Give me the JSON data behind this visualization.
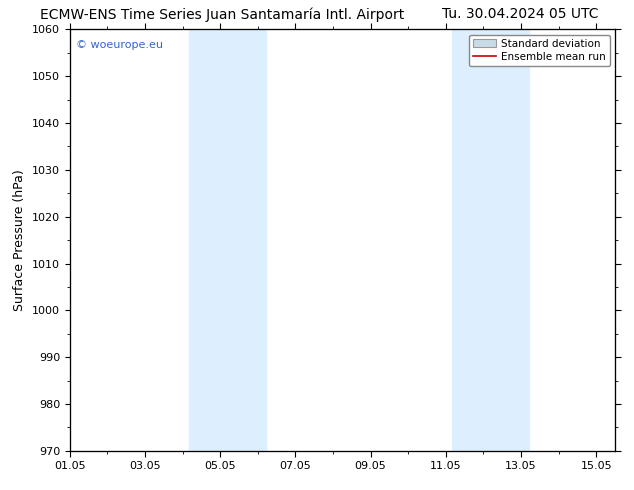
{
  "title_left": "ECMW-ENS Time Series Juan Santamaría Intl. Airport",
  "title_right": "Tu. 30.04.2024 05 UTC",
  "ylabel": "Surface Pressure (hPa)",
  "ylim": [
    970,
    1060
  ],
  "yticks": [
    970,
    980,
    990,
    1000,
    1010,
    1020,
    1030,
    1040,
    1050,
    1060
  ],
  "xtick_labels": [
    "01.05",
    "03.05",
    "05.05",
    "07.05",
    "09.05",
    "11.05",
    "13.05",
    "15.05"
  ],
  "xtick_positions": [
    0,
    2,
    4,
    6,
    8,
    10,
    12,
    14
  ],
  "xlim": [
    0,
    14.5
  ],
  "shaded_bands": [
    {
      "xstart": 3.17,
      "xend": 5.21
    },
    {
      "xstart": 10.17,
      "xend": 12.21
    }
  ],
  "shade_color": "#ddeeff",
  "watermark_text": "© woeurope.eu",
  "watermark_color": "#3366cc",
  "legend_sd_label": "Standard deviation",
  "legend_sd_color": "#c8dce8",
  "legend_em_label": "Ensemble mean run",
  "legend_em_color": "#cc0000",
  "background_color": "#ffffff",
  "title_fontsize": 10,
  "ylabel_fontsize": 9,
  "tick_fontsize": 8,
  "watermark_fontsize": 8,
  "legend_fontsize": 7.5
}
